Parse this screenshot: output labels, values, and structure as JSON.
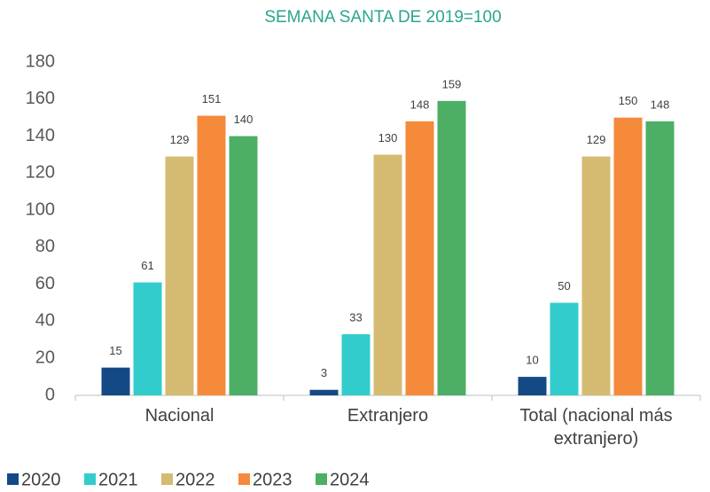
{
  "chart_data": {
    "type": "bar",
    "title": "SEMANA SANTA DE 2019=100",
    "categories": [
      "Nacional",
      "Extranjero",
      "Total (nacional más extranjero)"
    ],
    "series": [
      {
        "name": "2020",
        "color": "#134a86",
        "values": [
          15,
          3,
          10
        ]
      },
      {
        "name": "2021",
        "color": "#33cccc",
        "values": [
          61,
          33,
          50
        ]
      },
      {
        "name": "2022",
        "color": "#d5bb72",
        "values": [
          129,
          130,
          129
        ]
      },
      {
        "name": "2023",
        "color": "#f58a3b",
        "values": [
          151,
          148,
          150
        ]
      },
      {
        "name": "2024",
        "color": "#4caf65",
        "values": [
          140,
          159,
          148
        ]
      }
    ],
    "ylim": [
      0,
      180
    ],
    "yticks": [
      0,
      20,
      40,
      60,
      80,
      100,
      120,
      140,
      160,
      180
    ],
    "grid": false,
    "legend": "bottom"
  }
}
